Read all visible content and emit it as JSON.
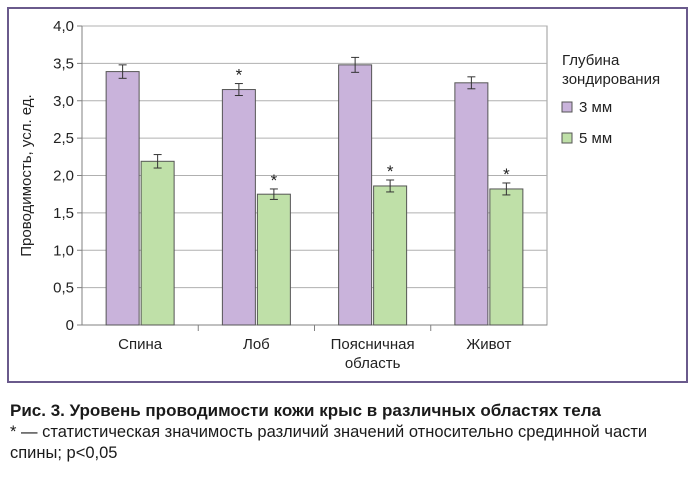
{
  "chart_data": {
    "type": "bar",
    "title": "",
    "ylabel": "Проводимость, усл. ед.",
    "xlabel": "",
    "ylim": [
      0,
      4.0
    ],
    "yticks": [
      0,
      0.5,
      1.0,
      1.5,
      2.0,
      2.5,
      3.0,
      3.5,
      4.0
    ],
    "ytick_labels": [
      "0",
      "0,5",
      "1,0",
      "1,5",
      "2,0",
      "2,5",
      "3,0",
      "3,5",
      "4,0"
    ],
    "categories": [
      "Спина",
      "Лоб",
      "Поясничная\nобласть",
      "Живот"
    ],
    "series": [
      {
        "name": "3 мм",
        "color": "#c9b3db",
        "values": [
          3.39,
          3.15,
          3.48,
          3.24
        ],
        "errors": [
          0.09,
          0.08,
          0.1,
          0.08
        ],
        "markers": [
          "",
          "*",
          "",
          ""
        ]
      },
      {
        "name": "5 мм",
        "color": "#bfe0a8",
        "values": [
          2.19,
          1.75,
          1.86,
          1.82
        ],
        "errors": [
          0.09,
          0.07,
          0.08,
          0.08
        ],
        "markers": [
          "",
          "*",
          "*",
          "*"
        ]
      }
    ],
    "legend": {
      "title": "Глубина\nзондирования",
      "position": "right"
    },
    "grid": true
  },
  "caption": {
    "title": "Рис. 3. Уровень проводимости кожи крыс в различных областях тела",
    "note": "* — статистическая значимость различий значений относительно срединной части спины; р<0,05"
  }
}
